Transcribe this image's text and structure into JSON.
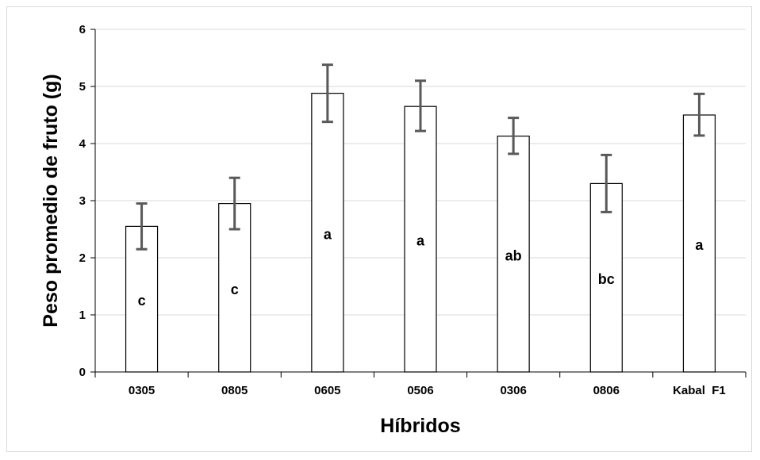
{
  "chart_data": {
    "type": "bar",
    "title": "",
    "xlabel": "Híbridos",
    "ylabel": "Peso promedio de fruto (g)",
    "ylim": [
      0,
      6
    ],
    "yticks": [
      0,
      1,
      2,
      3,
      4,
      5,
      6
    ],
    "grid": true,
    "categories": [
      "0305",
      "0805",
      "0605",
      "0506",
      "0306",
      "0806",
      "Kabal  F1"
    ],
    "values": [
      2.55,
      2.95,
      4.88,
      4.65,
      4.13,
      3.3,
      4.5
    ],
    "error_low": [
      2.15,
      2.5,
      4.38,
      4.22,
      3.82,
      2.8,
      4.14
    ],
    "error_high": [
      2.95,
      3.4,
      5.38,
      5.1,
      4.45,
      3.8,
      4.87
    ],
    "letters": [
      "c",
      "c",
      "a",
      "a",
      "ab",
      "bc",
      "a"
    ],
    "colors": {
      "bar_fill": "#ffffff",
      "bar_stroke": "#000000",
      "error_bar": "#595959",
      "grid": "#d9d9d9"
    }
  }
}
